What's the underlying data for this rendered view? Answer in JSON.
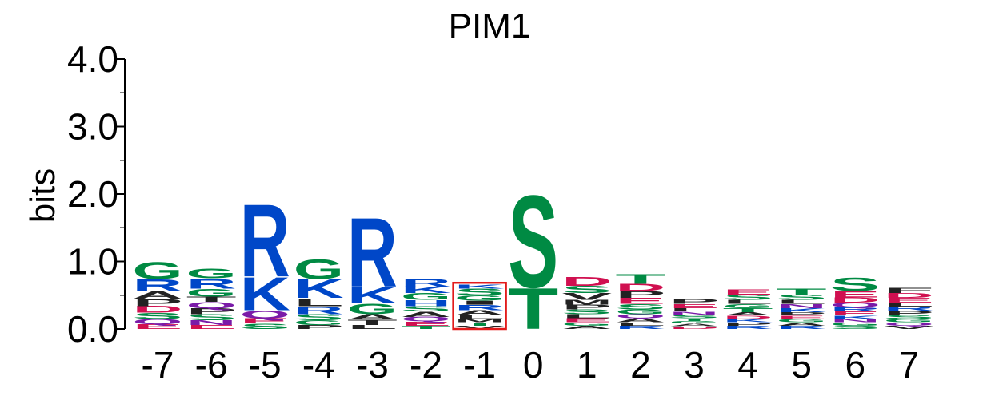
{
  "chart_data": {
    "type": "sequence-logo",
    "title": "PIM1",
    "ylabel": "bits",
    "ylim": [
      0,
      4
    ],
    "yticks": [
      "0.0",
      "1.0",
      "2.0",
      "3.0",
      "4.0"
    ],
    "highlight_position": "-1",
    "colors": {
      "green": "#008a43",
      "blue": "#0047c8",
      "purple": "#7a1aa8",
      "red": "#d01050",
      "black": "#222222",
      "highlight": "#e21b1b"
    },
    "positions": [
      {
        "pos": "-7",
        "letters": [
          {
            "c": "G",
            "h": 0.26,
            "col": "green"
          },
          {
            "c": "R",
            "h": 0.18,
            "col": "blue"
          },
          {
            "c": "A",
            "h": 0.11,
            "col": "black"
          },
          {
            "c": "P",
            "h": 0.11,
            "col": "black"
          },
          {
            "c": "D",
            "h": 0.1,
            "col": "red"
          },
          {
            "c": "S",
            "h": 0.09,
            "col": "green"
          },
          {
            "c": "Q",
            "h": 0.08,
            "col": "purple"
          },
          {
            "c": "E",
            "h": 0.07,
            "col": "red"
          }
        ]
      },
      {
        "pos": "-6",
        "letters": [
          {
            "c": "G",
            "h": 0.15,
            "col": "green"
          },
          {
            "c": "R",
            "h": 0.15,
            "col": "blue"
          },
          {
            "c": "G",
            "h": 0.12,
            "col": "green"
          },
          {
            "c": "T",
            "h": 0.08,
            "col": "black"
          },
          {
            "c": "Q",
            "h": 0.09,
            "col": "purple"
          },
          {
            "c": "P",
            "h": 0.09,
            "col": "black"
          },
          {
            "c": "S",
            "h": 0.09,
            "col": "green"
          },
          {
            "c": "N",
            "h": 0.07,
            "col": "purple"
          },
          {
            "c": "E",
            "h": 0.06,
            "col": "red"
          }
        ]
      },
      {
        "pos": "-5",
        "letters": [
          {
            "c": "R",
            "h": 1.1,
            "col": "blue"
          },
          {
            "c": "K",
            "h": 0.5,
            "col": "blue"
          },
          {
            "c": "Q",
            "h": 0.12,
            "col": "purple"
          },
          {
            "c": "E",
            "h": 0.08,
            "col": "red"
          },
          {
            "c": "S",
            "h": 0.08,
            "col": "green"
          }
        ]
      },
      {
        "pos": "-4",
        "letters": [
          {
            "c": "G",
            "h": 0.3,
            "col": "green"
          },
          {
            "c": "K",
            "h": 0.28,
            "col": "blue"
          },
          {
            "c": "L",
            "h": 0.12,
            "col": "black"
          },
          {
            "c": "R",
            "h": 0.12,
            "col": "blue"
          },
          {
            "c": "S",
            "h": 0.09,
            "col": "green"
          },
          {
            "c": "G",
            "h": 0.07,
            "col": "green"
          },
          {
            "c": "P",
            "h": 0.06,
            "col": "black"
          }
        ]
      },
      {
        "pos": "-3",
        "letters": [
          {
            "c": "R",
            "h": 1.05,
            "col": "blue"
          },
          {
            "c": "K",
            "h": 0.25,
            "col": "blue"
          },
          {
            "c": "G",
            "h": 0.16,
            "col": "green"
          },
          {
            "c": "A",
            "h": 0.08,
            "col": "black"
          },
          {
            "c": "T",
            "h": 0.08,
            "col": "black"
          },
          {
            "c": "L",
            "h": 0.06,
            "col": "black"
          }
        ]
      },
      {
        "pos": "-2",
        "letters": [
          {
            "c": "R",
            "h": 0.12,
            "col": "blue"
          },
          {
            "c": "K",
            "h": 0.1,
            "col": "blue"
          },
          {
            "c": "G",
            "h": 0.1,
            "col": "green"
          },
          {
            "c": "H",
            "h": 0.09,
            "col": "blue"
          },
          {
            "c": "S",
            "h": 0.08,
            "col": "green"
          },
          {
            "c": "A",
            "h": 0.08,
            "col": "black"
          },
          {
            "c": "Q",
            "h": 0.07,
            "col": "purple"
          },
          {
            "c": "E",
            "h": 0.06,
            "col": "red"
          },
          {
            "c": "T",
            "h": 0.05,
            "col": "green"
          }
        ]
      },
      {
        "pos": "-1",
        "letters": [
          {
            "c": "K",
            "h": 0.06,
            "col": "blue"
          },
          {
            "c": "S",
            "h": 0.1,
            "col": "green"
          },
          {
            "c": "G",
            "h": 0.08,
            "col": "green"
          },
          {
            "c": "I",
            "h": 0.06,
            "col": "black"
          },
          {
            "c": "R",
            "h": 0.08,
            "col": "blue"
          },
          {
            "c": "A",
            "h": 0.07,
            "col": "black"
          },
          {
            "c": "L",
            "h": 0.06,
            "col": "black"
          },
          {
            "c": "M",
            "h": 0.05,
            "col": "black"
          },
          {
            "c": "T",
            "h": 0.05,
            "col": "green"
          },
          {
            "c": "V",
            "h": 0.05,
            "col": "black"
          }
        ]
      },
      {
        "pos": "0",
        "letters": [
          {
            "c": "S",
            "h": 1.4,
            "col": "green"
          },
          {
            "c": "T",
            "h": 0.62,
            "col": "green"
          }
        ]
      },
      {
        "pos": "1",
        "letters": [
          {
            "c": "D",
            "h": 0.13,
            "col": "red"
          },
          {
            "c": "S",
            "h": 0.11,
            "col": "green"
          },
          {
            "c": "V",
            "h": 0.1,
            "col": "black"
          },
          {
            "c": "M",
            "h": 0.07,
            "col": "black"
          },
          {
            "c": "P",
            "h": 0.07,
            "col": "black"
          },
          {
            "c": "S",
            "h": 0.07,
            "col": "green"
          },
          {
            "c": "L",
            "h": 0.06,
            "col": "black"
          },
          {
            "c": "E",
            "h": 0.06,
            "col": "red"
          },
          {
            "c": "G",
            "h": 0.05,
            "col": "green"
          },
          {
            "c": "A",
            "h": 0.05,
            "col": "black"
          }
        ]
      },
      {
        "pos": "2",
        "letters": [
          {
            "c": "T",
            "h": 0.15,
            "col": "green"
          },
          {
            "c": "D",
            "h": 0.11,
            "col": "red"
          },
          {
            "c": "P",
            "h": 0.1,
            "col": "black"
          },
          {
            "c": "E",
            "h": 0.09,
            "col": "red"
          },
          {
            "c": "S",
            "h": 0.08,
            "col": "green"
          },
          {
            "c": "G",
            "h": 0.07,
            "col": "green"
          },
          {
            "c": "Q",
            "h": 0.06,
            "col": "purple"
          },
          {
            "c": "A",
            "h": 0.06,
            "col": "black"
          },
          {
            "c": "L",
            "h": 0.05,
            "col": "black"
          },
          {
            "c": "R",
            "h": 0.05,
            "col": "blue"
          }
        ]
      },
      {
        "pos": "3",
        "letters": [
          {
            "c": "P",
            "h": 0.07,
            "col": "black"
          },
          {
            "c": "E",
            "h": 0.06,
            "col": "red"
          },
          {
            "c": "L",
            "h": 0.05,
            "col": "black"
          },
          {
            "c": "N",
            "h": 0.05,
            "col": "purple"
          },
          {
            "c": "S",
            "h": 0.05,
            "col": "green"
          },
          {
            "c": "T",
            "h": 0.04,
            "col": "green"
          },
          {
            "c": "G",
            "h": 0.04,
            "col": "green"
          },
          {
            "c": "A",
            "h": 0.04,
            "col": "black"
          },
          {
            "c": "D",
            "h": 0.04,
            "col": "red"
          }
        ]
      },
      {
        "pos": "4",
        "letters": [
          {
            "c": "E",
            "h": 0.08,
            "col": "red"
          },
          {
            "c": "S",
            "h": 0.08,
            "col": "green"
          },
          {
            "c": "L",
            "h": 0.06,
            "col": "black"
          },
          {
            "c": "G",
            "h": 0.06,
            "col": "green"
          },
          {
            "c": "T",
            "h": 0.06,
            "col": "green"
          },
          {
            "c": "A",
            "h": 0.05,
            "col": "black"
          },
          {
            "c": "D",
            "h": 0.05,
            "col": "red"
          },
          {
            "c": "K",
            "h": 0.05,
            "col": "blue"
          },
          {
            "c": "P",
            "h": 0.05,
            "col": "black"
          },
          {
            "c": "R",
            "h": 0.05,
            "col": "blue"
          }
        ]
      },
      {
        "pos": "5",
        "letters": [
          {
            "c": "T",
            "h": 0.09,
            "col": "green"
          },
          {
            "c": "S",
            "h": 0.08,
            "col": "green"
          },
          {
            "c": "L",
            "h": 0.06,
            "col": "black"
          },
          {
            "c": "N",
            "h": 0.06,
            "col": "purple"
          },
          {
            "c": "K",
            "h": 0.06,
            "col": "blue"
          },
          {
            "c": "P",
            "h": 0.05,
            "col": "black"
          },
          {
            "c": "E",
            "h": 0.05,
            "col": "red"
          },
          {
            "c": "G",
            "h": 0.05,
            "col": "green"
          },
          {
            "c": "A",
            "h": 0.05,
            "col": "black"
          },
          {
            "c": "R",
            "h": 0.05,
            "col": "blue"
          }
        ]
      },
      {
        "pos": "6",
        "letters": [
          {
            "c": "S",
            "h": 0.2,
            "col": "green"
          },
          {
            "c": "E",
            "h": 0.09,
            "col": "red"
          },
          {
            "c": "D",
            "h": 0.08,
            "col": "red"
          },
          {
            "c": "Q",
            "h": 0.07,
            "col": "purple"
          },
          {
            "c": "R",
            "h": 0.06,
            "col": "blue"
          },
          {
            "c": "E",
            "h": 0.06,
            "col": "red"
          },
          {
            "c": "K",
            "h": 0.05,
            "col": "blue"
          },
          {
            "c": "N",
            "h": 0.05,
            "col": "purple"
          },
          {
            "c": "G",
            "h": 0.05,
            "col": "green"
          },
          {
            "c": "S",
            "h": 0.05,
            "col": "green"
          }
        ]
      },
      {
        "pos": "7",
        "letters": [
          {
            "c": "F",
            "h": 0.08,
            "col": "black"
          },
          {
            "c": "D",
            "h": 0.07,
            "col": "red"
          },
          {
            "c": "E",
            "h": 0.07,
            "col": "red"
          },
          {
            "c": "L",
            "h": 0.06,
            "col": "black"
          },
          {
            "c": "R",
            "h": 0.06,
            "col": "blue"
          },
          {
            "c": "P",
            "h": 0.06,
            "col": "black"
          },
          {
            "c": "S",
            "h": 0.06,
            "col": "green"
          },
          {
            "c": "G",
            "h": 0.05,
            "col": "green"
          },
          {
            "c": "Q",
            "h": 0.05,
            "col": "purple"
          },
          {
            "c": "V",
            "h": 0.05,
            "col": "black"
          }
        ]
      }
    ]
  }
}
